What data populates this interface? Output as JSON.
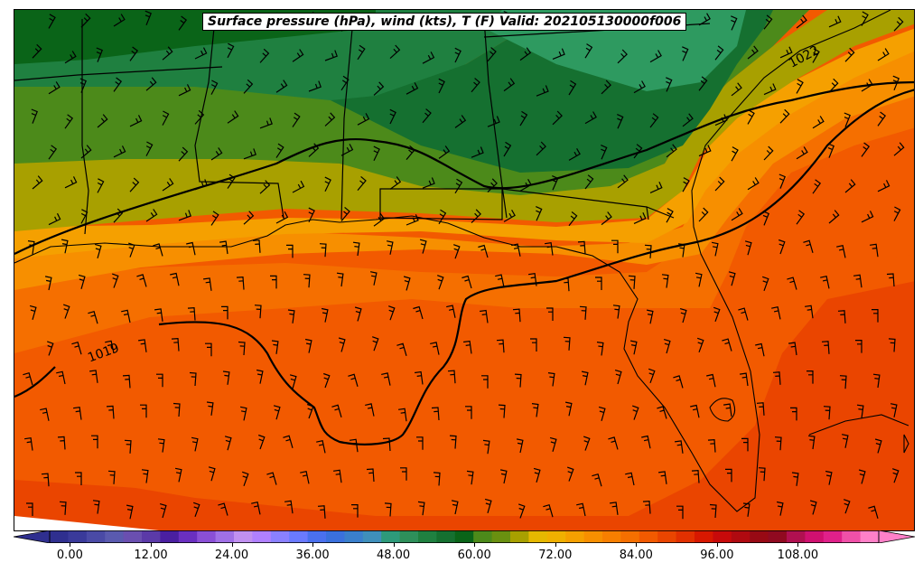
{
  "title": "Surface pressure (hPa), wind (kts), T (F) Valid: 202105130000f006",
  "isobar_labels": [
    "1022",
    "1019"
  ],
  "colorbar": {
    "min": -3,
    "max": 120,
    "step": 3,
    "ticks": [
      0,
      12,
      24,
      36,
      48,
      60,
      72,
      84,
      96,
      108
    ],
    "tick_labels": [
      "0.00",
      "12.00",
      "24.00",
      "36.00",
      "48.00",
      "60.00",
      "72.00",
      "84.00",
      "96.00",
      "108.00"
    ],
    "colors": [
      "#2f2f8f",
      "#3a3a9a",
      "#4a4aa6",
      "#5a5aaf",
      "#6a4fb0",
      "#5b3aa8",
      "#4a1fa0",
      "#6a2fc0",
      "#8a4fd6",
      "#a070e6",
      "#c090f0",
      "#b080ff",
      "#8a80ff",
      "#6a7aff",
      "#4a70ee",
      "#3a70dd",
      "#3a7fcc",
      "#3f8fbb",
      "#2e9a7a",
      "#2e8f5a",
      "#1f8040",
      "#157030",
      "#0a6418",
      "#4c8a1a",
      "#6a9010",
      "#a8a000",
      "#e6b800",
      "#f0b000",
      "#f5a000",
      "#f78f00",
      "#f77f00",
      "#f56f00",
      "#f25a00",
      "#ea4500",
      "#e23000",
      "#d81800",
      "#c80a0a",
      "#b00a10",
      "#980a14",
      "#900a20",
      "#b01050",
      "#d01070",
      "#e0208a",
      "#f050a8",
      "#ff80c8"
    ]
  },
  "map": {
    "region": "US Gulf Coast and Florida",
    "colors": {
      "temp_38": "#0a6418",
      "temp_40": "#157030",
      "temp_44": "#2e9a60",
      "temp_50": "#1f8040",
      "temp_58": "#4c8a1a",
      "temp_62": "#6a9010",
      "temp_64": "#a8a000",
      "temp_66": "#e6b800",
      "temp_68": "#f5a000",
      "temp_72": "#f78f00",
      "temp_76": "#f56f00",
      "temp_80": "#f25a00",
      "temp_84": "#ea4500",
      "temp_88": "#e23000",
      "isobar": "#000000",
      "border": "#000000"
    }
  }
}
